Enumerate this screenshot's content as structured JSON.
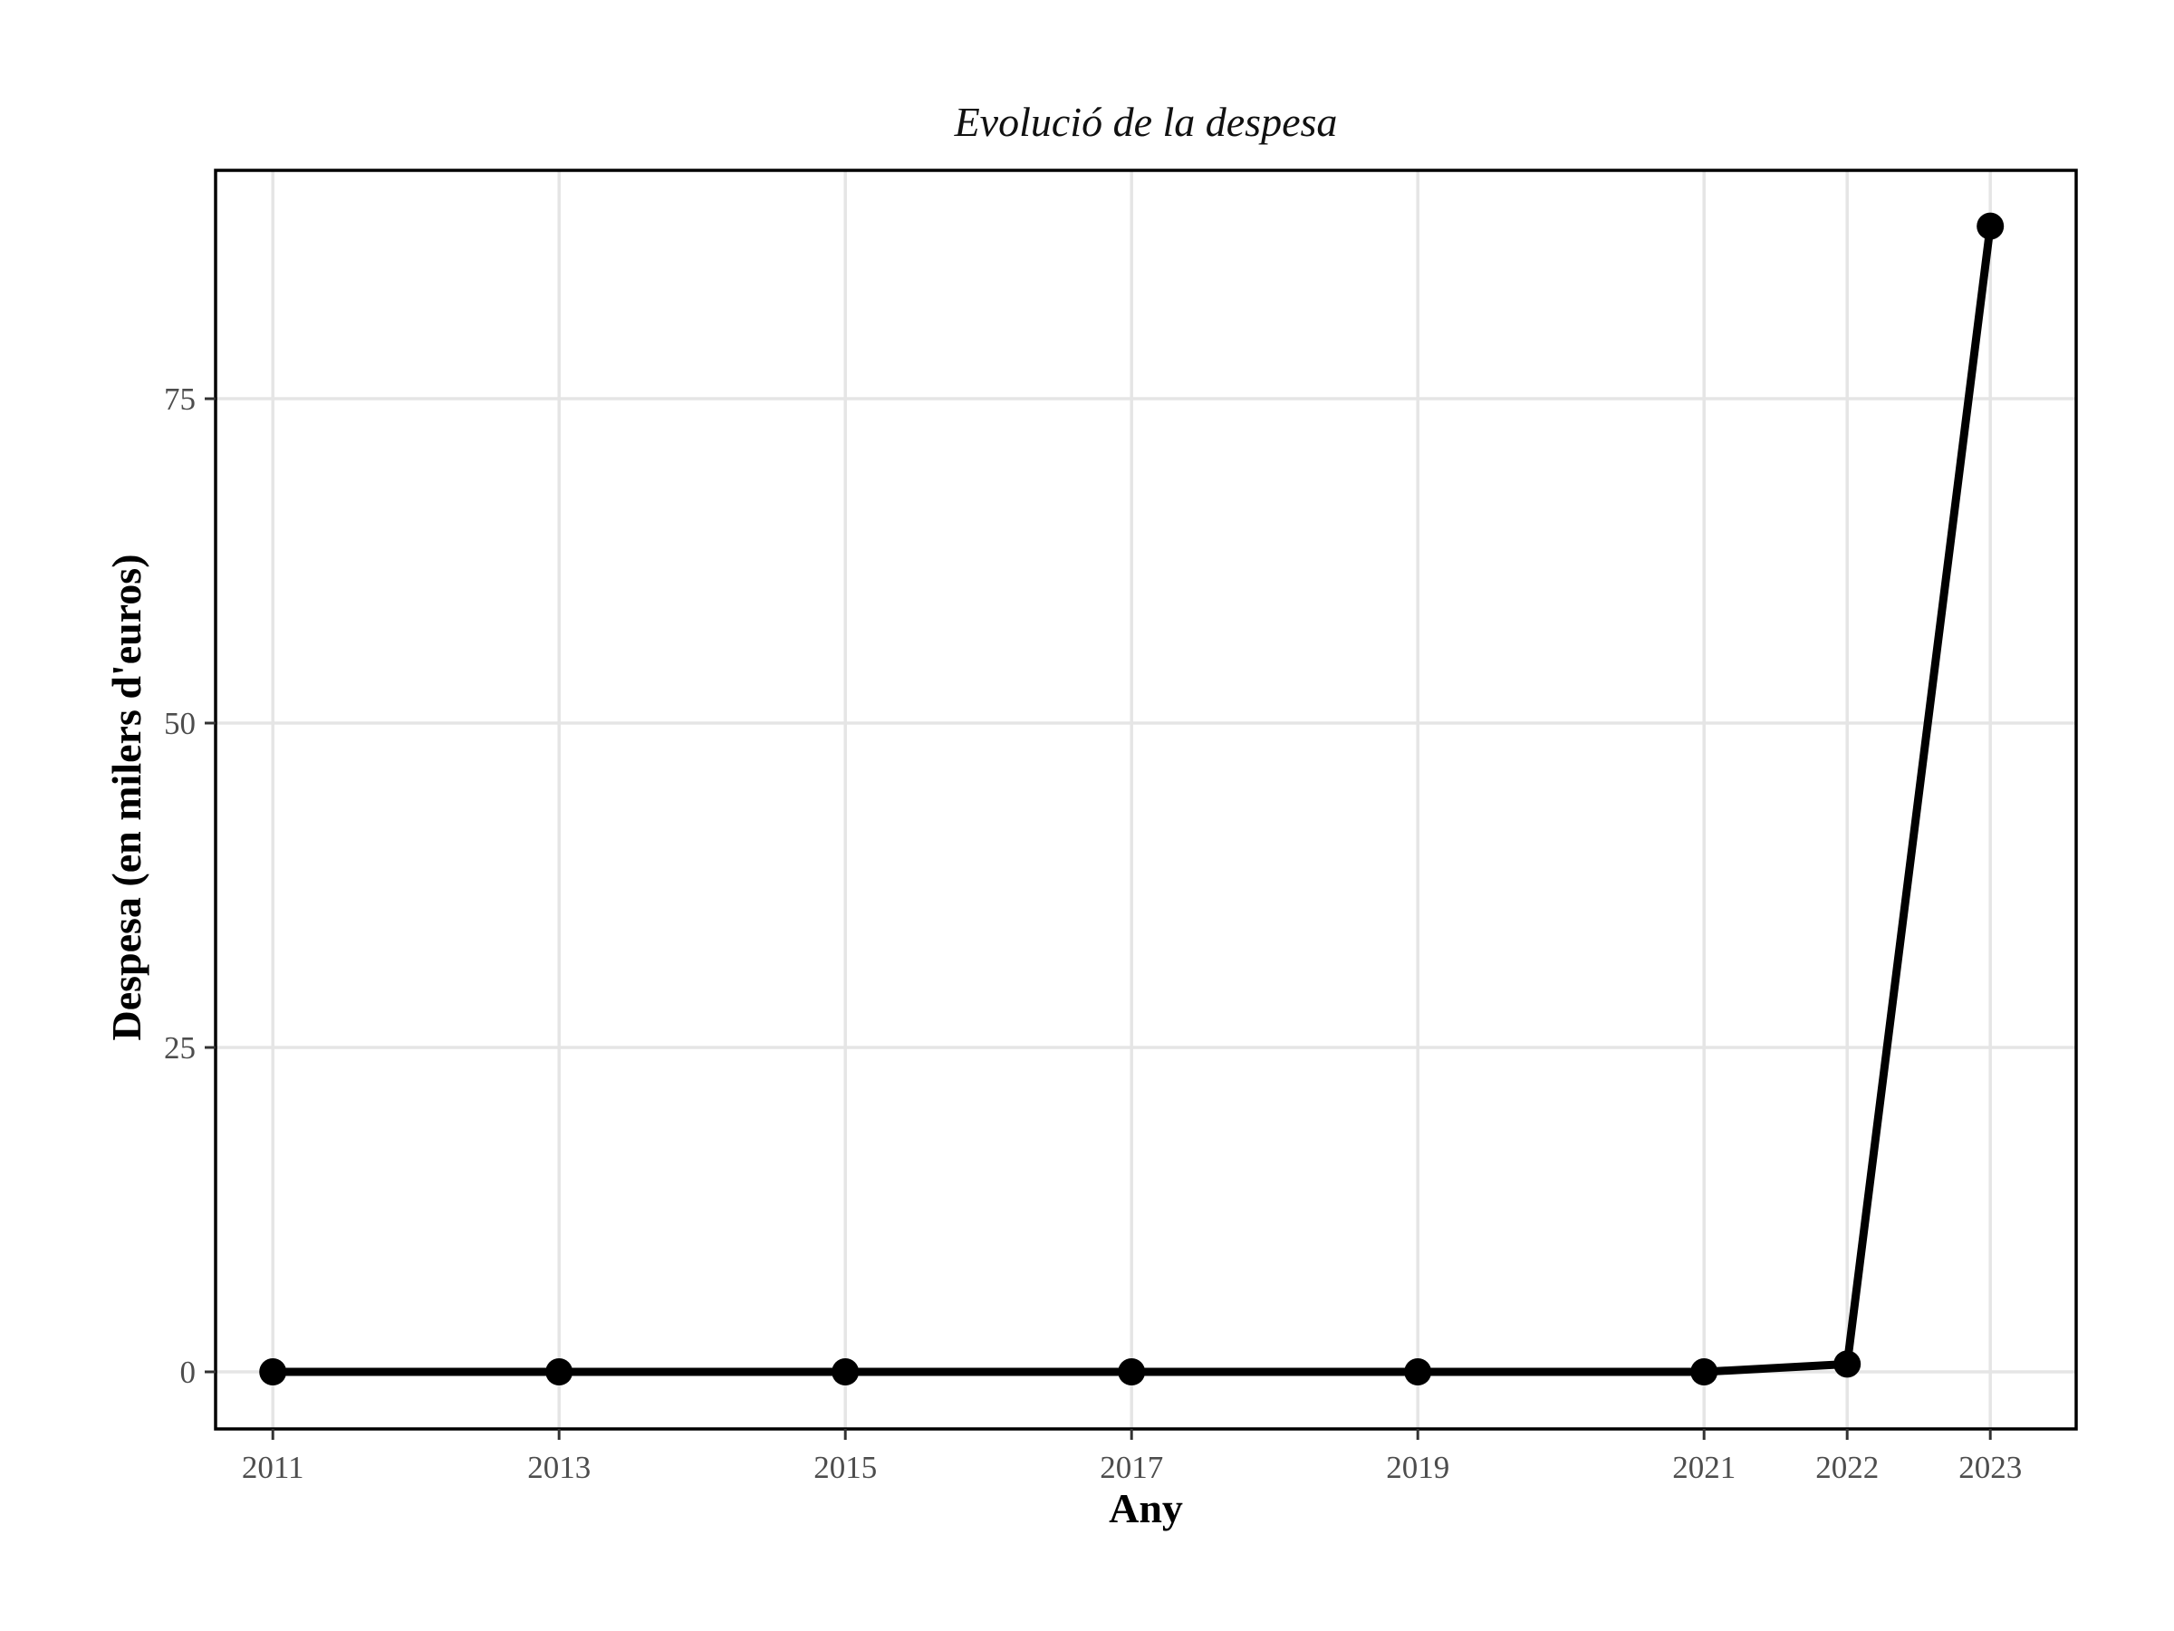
{
  "chart_data": {
    "type": "line",
    "title": "Evolució de la despesa",
    "xlabel": "Any",
    "ylabel": "Despesa (en milers d'euros)",
    "x": [
      2011,
      2013,
      2015,
      2017,
      2019,
      2021,
      2022,
      2023
    ],
    "series": [
      {
        "values": [
          0,
          0,
          0,
          0,
          0,
          0,
          0.6,
          88.3
        ]
      }
    ],
    "x_ticks": [
      2011,
      2013,
      2015,
      2017,
      2019,
      2021,
      2022,
      2023
    ],
    "y_ticks": [
      0,
      25,
      50,
      75
    ],
    "xlim": [
      2010.6,
      2023.6
    ],
    "ylim": [
      -4.4,
      92.6
    ],
    "grid": true,
    "legend": "none",
    "colors": {
      "line": "#000000",
      "grid": "#e5e5e5",
      "tick_text": "#4d4d4d"
    }
  }
}
